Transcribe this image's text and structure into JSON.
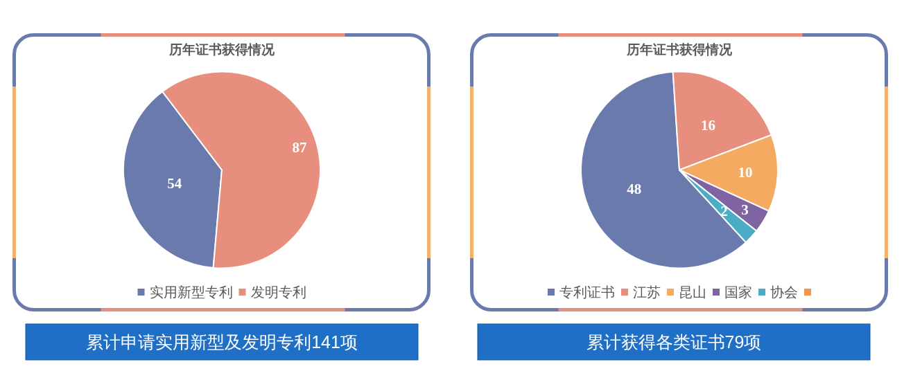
{
  "chart_data": [
    {
      "type": "pie",
      "title": "历年证书获得情况",
      "categories": [
        "实用新型专利",
        "发明专利"
      ],
      "values": [
        54,
        87
      ],
      "colors": [
        "#6a7aad",
        "#e88e7e"
      ],
      "data_labels": true,
      "legend": "bottom",
      "annotations": [
        "累计申请实用新型及发明专利141项"
      ]
    },
    {
      "type": "pie",
      "title": "历年证书获得情况",
      "categories": [
        "专利证书",
        "江苏",
        "昆山",
        "国家",
        "协会",
        null
      ],
      "values": [
        48,
        16,
        10,
        3,
        2,
        0
      ],
      "colors": [
        "#6a7aad",
        "#e88e7e",
        "#f5aa62",
        "#8064a2",
        "#4bacc6",
        "#f79646"
      ],
      "value_labels": [
        "48",
        "16",
        "10",
        "3",
        "2",
        null
      ],
      "legend": "bottom",
      "annotations": [
        "累计获得各类证书79项"
      ]
    }
  ]
}
